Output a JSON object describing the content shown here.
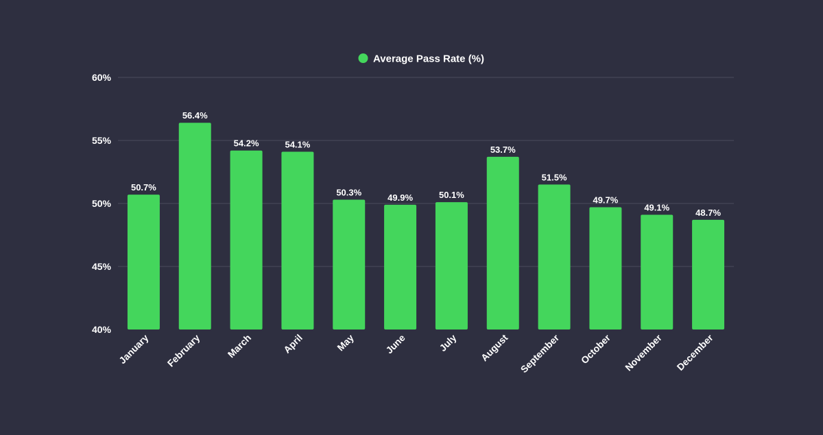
{
  "chart_data": {
    "type": "bar",
    "title": "",
    "legend": {
      "position": "top-center",
      "entries": [
        {
          "label": "Average Pass Rate (%)",
          "color": "#44d65c"
        }
      ]
    },
    "categories": [
      "January",
      "February",
      "March",
      "April",
      "May",
      "June",
      "July",
      "August",
      "September",
      "October",
      "November",
      "December"
    ],
    "series": [
      {
        "name": "Average Pass Rate (%)",
        "color": "#44d65c",
        "values": [
          50.7,
          56.4,
          54.2,
          54.1,
          50.3,
          49.9,
          50.1,
          53.7,
          51.5,
          49.7,
          49.1,
          48.7
        ],
        "value_labels": [
          "50.7%",
          "56.4%",
          "54.2%",
          "54.1%",
          "50.3%",
          "49.9%",
          "50.1%",
          "53.7%",
          "51.5%",
          "49.7%",
          "49.1%",
          "48.7%"
        ]
      }
    ],
    "xlabel": "",
    "ylabel": "",
    "ylim": [
      40,
      60
    ],
    "yticks": [
      40,
      45,
      50,
      55,
      60
    ],
    "ytick_labels": [
      "40%",
      "45%",
      "50%",
      "55%",
      "60%"
    ],
    "grid": true,
    "background": "#2e2f40",
    "text_color": "#ffffff",
    "grid_color": "#4a4b5c"
  }
}
